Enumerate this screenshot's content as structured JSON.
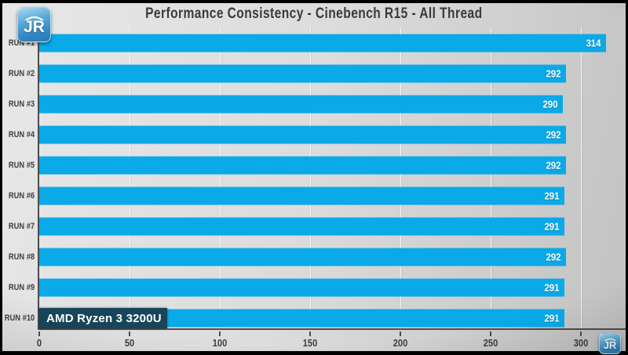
{
  "logo": {
    "text": "JR"
  },
  "annotation": {
    "cpu_label": "AMD Ryzen 3 3200U"
  },
  "colors": {
    "bar": "#0aa9e8",
    "bar_value_text": "#ffffff",
    "annotation_bg": "#17465a",
    "axis": "#4c4c4c",
    "background_light": "#e7e7e7",
    "background_dark": "#c2c2c2",
    "title_text": "#3a3a3a",
    "logo_blue": "#2f86c2"
  },
  "chart_data": {
    "type": "bar",
    "orientation": "horizontal",
    "title": "Performance Consistency - Cinebench R15 - All Thread",
    "categories": [
      "RUN #1",
      "RUN #2",
      "RUN #3",
      "RUN #4",
      "RUN #5",
      "RUN #6",
      "RUN #7",
      "RUN #8",
      "RUN #9",
      "RUN #10"
    ],
    "values": [
      314,
      292,
      290,
      292,
      292,
      291,
      291,
      292,
      291,
      291
    ],
    "xlabel": "",
    "ylabel": "",
    "xlim": [
      0,
      325
    ],
    "x_ticks": [
      0,
      50,
      100,
      150,
      200,
      250,
      300
    ],
    "grid": "vertical",
    "legend": null,
    "value_labels": "inside-end",
    "annotation_on_category": "RUN #10"
  }
}
